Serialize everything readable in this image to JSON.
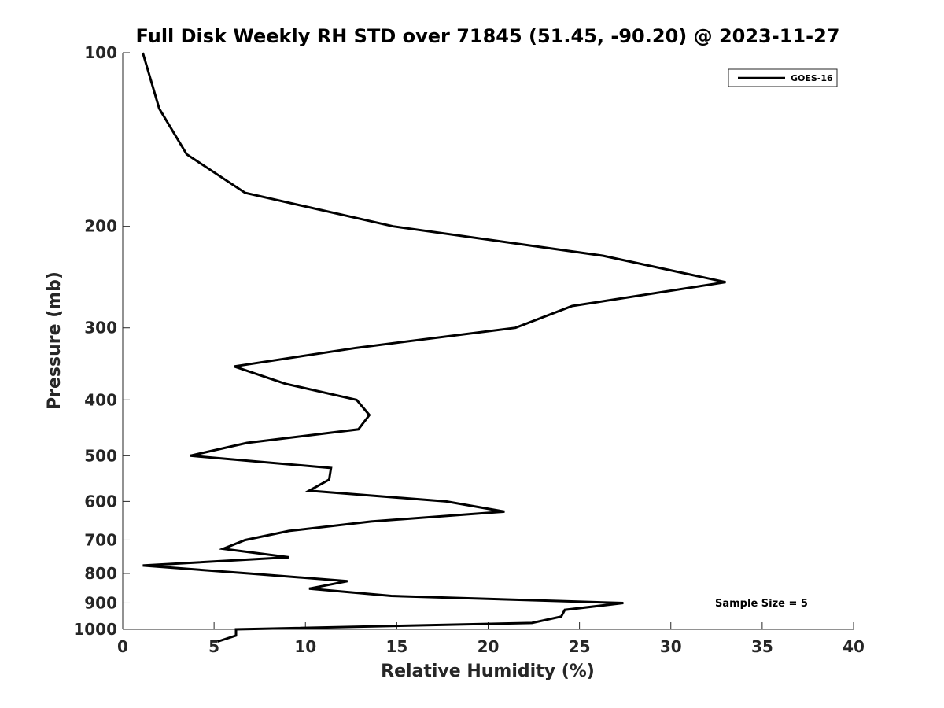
{
  "chart_data": {
    "type": "line",
    "title": "Full Disk Weekly RH STD over 71845 (51.45, -90.20) @ 2023-11-27",
    "xlabel": "Relative Humidity (%)",
    "ylabel": "Pressure (mb)",
    "xlim": [
      0,
      40
    ],
    "ylim": [
      100,
      1000
    ],
    "y_scale": "log",
    "y_reversed": true,
    "x_ticks": [
      0,
      5,
      10,
      15,
      20,
      25,
      30,
      35,
      40
    ],
    "x_tick_labels": [
      "0",
      "5",
      "10",
      "15",
      "20",
      "25",
      "30",
      "35",
      "40"
    ],
    "y_ticks": [
      100,
      200,
      300,
      400,
      500,
      600,
      700,
      800,
      900,
      1000
    ],
    "y_tick_labels": [
      "100",
      "200",
      "300",
      "400",
      "500",
      "600",
      "700",
      "800",
      "900",
      "1000"
    ],
    "grid": false,
    "legend_position": "top-right",
    "series": [
      {
        "name": "GOES-16",
        "color": "#000000",
        "points": [
          {
            "x": 1.1,
            "p": 100
          },
          {
            "x": 2.0,
            "p": 125
          },
          {
            "x": 3.5,
            "p": 150
          },
          {
            "x": 6.7,
            "p": 175
          },
          {
            "x": 14.8,
            "p": 200
          },
          {
            "x": 26.3,
            "p": 225
          },
          {
            "x": 33.0,
            "p": 250
          },
          {
            "x": 24.6,
            "p": 275
          },
          {
            "x": 21.5,
            "p": 300
          },
          {
            "x": 12.8,
            "p": 325
          },
          {
            "x": 6.1,
            "p": 350
          },
          {
            "x": 8.9,
            "p": 375
          },
          {
            "x": 12.8,
            "p": 400
          },
          {
            "x": 13.5,
            "p": 425
          },
          {
            "x": 12.9,
            "p": 450
          },
          {
            "x": 6.8,
            "p": 475
          },
          {
            "x": 3.7,
            "p": 500
          },
          {
            "x": 11.4,
            "p": 525
          },
          {
            "x": 11.3,
            "p": 550
          },
          {
            "x": 10.2,
            "p": 575
          },
          {
            "x": 17.7,
            "p": 600
          },
          {
            "x": 20.9,
            "p": 625
          },
          {
            "x": 13.6,
            "p": 650
          },
          {
            "x": 9.1,
            "p": 675
          },
          {
            "x": 6.7,
            "p": 700
          },
          {
            "x": 5.5,
            "p": 725
          },
          {
            "x": 9.1,
            "p": 750
          },
          {
            "x": 1.1,
            "p": 775
          },
          {
            "x": 6.9,
            "p": 800
          },
          {
            "x": 12.3,
            "p": 825
          },
          {
            "x": 10.2,
            "p": 850
          },
          {
            "x": 14.7,
            "p": 875
          },
          {
            "x": 27.4,
            "p": 900
          },
          {
            "x": 24.2,
            "p": 925
          },
          {
            "x": 24.0,
            "p": 950
          },
          {
            "x": 22.4,
            "p": 975
          },
          {
            "x": 6.2,
            "p": 1000
          },
          {
            "x": 6.2,
            "p": 1025
          },
          {
            "x": 5.2,
            "p": 1050
          }
        ]
      }
    ],
    "annotations": [
      {
        "text": "Sample Size = 5",
        "x": 36.5,
        "p": 910
      }
    ]
  }
}
